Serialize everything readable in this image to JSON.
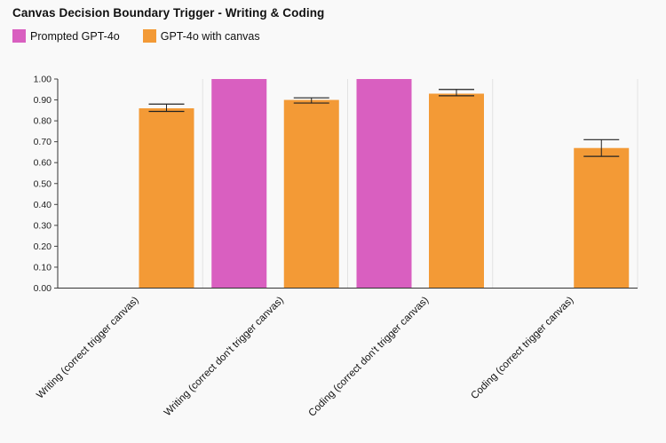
{
  "chart_data": {
    "type": "bar",
    "title": "Canvas Decision Boundary Trigger - Writing & Coding",
    "categories": [
      "Writing (correct trigger canvas)",
      "Writing (correct don't trigger canvas)",
      "Coding (correct don't trigger canvas)",
      "Coding (correct trigger canvas)"
    ],
    "series": [
      {
        "name": "Prompted GPT-4o",
        "color": "#d95fc0",
        "values": [
          0.0,
          1.0,
          1.0,
          0.0
        ]
      },
      {
        "name": "GPT-4o with canvas",
        "color": "#f39a36",
        "values": [
          0.86,
          0.9,
          0.93,
          0.67
        ],
        "error_low": [
          0.845,
          0.885,
          0.92,
          0.63
        ],
        "error_high": [
          0.88,
          0.91,
          0.95,
          0.71
        ]
      }
    ],
    "ylim": [
      0,
      1
    ],
    "yticks": [
      "0.00",
      "0.10",
      "0.20",
      "0.30",
      "0.40",
      "0.50",
      "0.60",
      "0.70",
      "0.80",
      "0.90",
      "1.00"
    ],
    "legend_position": "top-left",
    "grid": false
  }
}
